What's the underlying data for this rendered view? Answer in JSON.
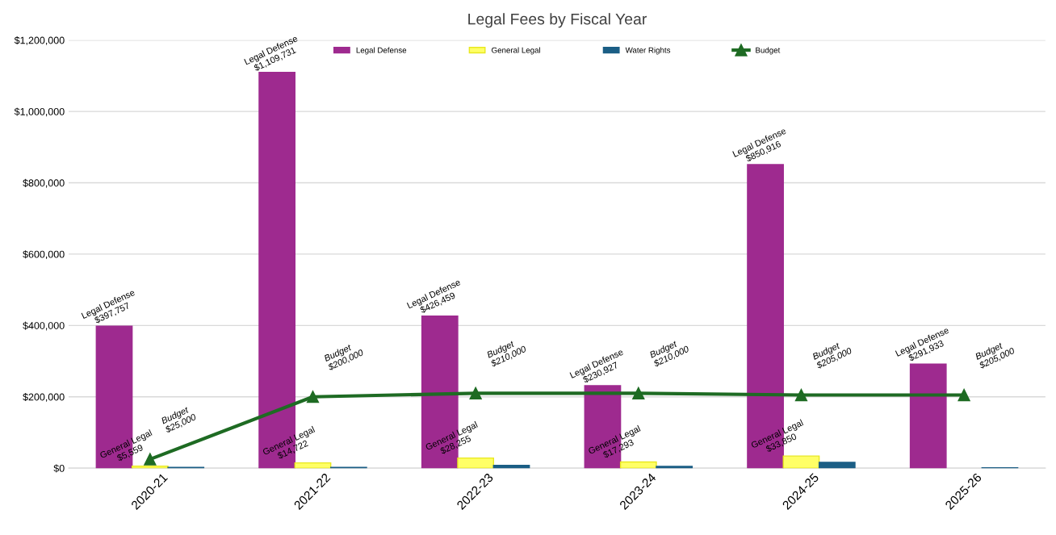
{
  "chart_data": {
    "type": "bar",
    "title": "Legal Fees by Fiscal Year",
    "categories": [
      "2020-21",
      "2021-22",
      "2022-23",
      "2023-24",
      "2024-25",
      "2025-26"
    ],
    "series": [
      {
        "name": "Legal Defense",
        "color": "#9e2a8f",
        "values": [
          397757,
          1109731,
          426459,
          230927,
          850916,
          291933
        ],
        "value_labels": [
          "Legal Defense\n$397,757",
          "Legal Defense\n$1,109,731",
          "Legal Defense\n$426,459",
          "Legal Defense\n$230,927",
          "Legal Defense\n$850,916",
          "Legal Defense\n$291,933"
        ]
      },
      {
        "name": "General Legal",
        "color": "#ffff66",
        "values": [
          5559,
          14722,
          28255,
          17293,
          33850,
          null
        ],
        "value_labels": [
          "General Legal\n$5,559",
          "General Legal\n$14,722",
          "General Legal\n$28,255",
          "General Legal\n$17,293",
          "General Legal\n$33,850",
          null
        ]
      },
      {
        "name": "Water Rights",
        "color": "#1b5e85",
        "values": [
          2000,
          2000,
          8000,
          5000,
          16000,
          1000
        ]
      },
      {
        "name": "Budget",
        "type": "line",
        "color": "#1e6b23",
        "marker": "triangle",
        "values": [
          25000,
          200000,
          210000,
          210000,
          205000,
          205000
        ],
        "value_labels": [
          "Budget\n$25,000",
          "Budget\n$200,000",
          "Budget\n$210,000",
          "Budget\n$210,000",
          "Budget\n$205,000",
          "Budget\n$205,000"
        ]
      }
    ],
    "ylim": [
      0,
      1200000
    ],
    "yticks": [
      {
        "value": 0,
        "label": "$0"
      },
      {
        "value": 200000,
        "label": "$200,000"
      },
      {
        "value": 400000,
        "label": "$400,000"
      },
      {
        "value": 600000,
        "label": "$600,000"
      },
      {
        "value": 800000,
        "label": "$800,000"
      },
      {
        "value": 1000000,
        "label": "$1,000,000"
      },
      {
        "value": 1200000,
        "label": "$1,200,000"
      }
    ],
    "grid": "y",
    "legend": "top"
  }
}
